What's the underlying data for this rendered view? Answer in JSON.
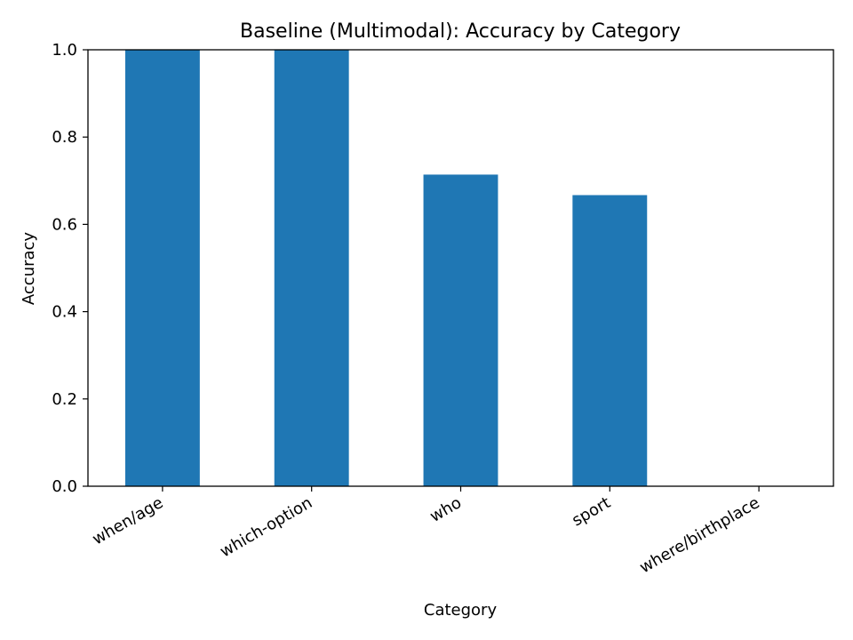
{
  "chart_data": {
    "type": "bar",
    "title": "Baseline (Multimodal): Accuracy by Category",
    "xlabel": "Category",
    "ylabel": "Accuracy",
    "categories": [
      "when/age",
      "which-option",
      "who",
      "sport",
      "where/birthplace"
    ],
    "values": [
      1.0,
      1.0,
      0.714,
      0.667,
      0.0
    ],
    "ylim": [
      0,
      1.0
    ],
    "yticks": [
      0.0,
      0.2,
      0.4,
      0.6,
      0.8,
      1.0
    ],
    "ytick_labels": [
      "0.0",
      "0.2",
      "0.4",
      "0.6",
      "0.8",
      "1.0"
    ],
    "bar_color": "#1f77b4",
    "grid": false,
    "legend": "none"
  }
}
